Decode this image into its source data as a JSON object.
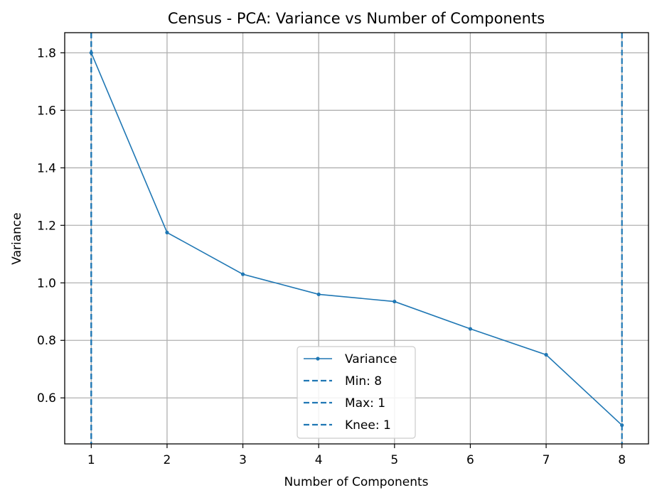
{
  "chart_data": {
    "type": "line",
    "title": "Census - PCA: Variance vs Number of Components",
    "xlabel": "Number of Components",
    "ylabel": "Variance",
    "x": [
      1,
      2,
      3,
      4,
      5,
      6,
      7,
      8
    ],
    "xlim": [
      0.65,
      8.35
    ],
    "ylim": [
      0.44,
      1.87
    ],
    "xticks": [
      1,
      2,
      3,
      4,
      5,
      6,
      7,
      8
    ],
    "yticks": [
      0.6,
      0.8,
      1.0,
      1.2,
      1.4,
      1.6,
      1.8
    ],
    "ytick_labels": [
      "0.6",
      "0.8",
      "1.0",
      "1.2",
      "1.4",
      "1.6",
      "1.8"
    ],
    "grid": true,
    "legend_position": "lower-center",
    "color": "#1f77b4",
    "series": [
      {
        "name": "Variance",
        "values": [
          1.8,
          1.175,
          1.03,
          0.96,
          0.935,
          0.84,
          0.75,
          0.505
        ]
      }
    ],
    "vlines": [
      {
        "label": "Min: 8",
        "x": 8
      },
      {
        "label": "Max: 1",
        "x": 1
      },
      {
        "label": "Knee: 1",
        "x": 1
      }
    ]
  }
}
